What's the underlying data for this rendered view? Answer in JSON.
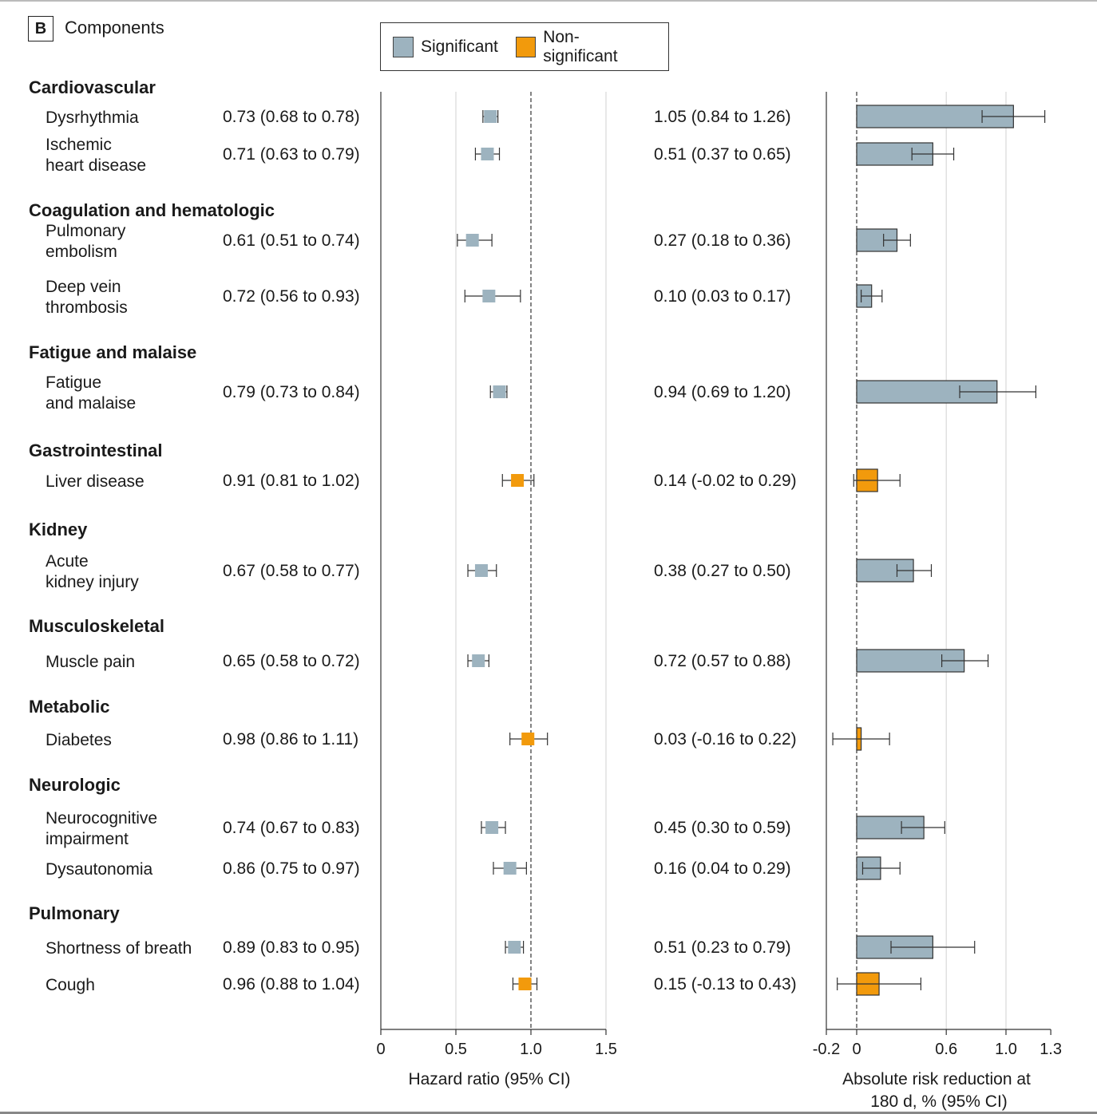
{
  "panel": {
    "label": "B",
    "title": "Components"
  },
  "legend": [
    {
      "label": "Significant",
      "color": "#9db3bf"
    },
    {
      "label": "Non-significant",
      "color": "#f29a0c"
    }
  ],
  "colors": {
    "significant": "#9db3bf",
    "nonsignificant": "#f29a0c",
    "stroke": "#333333",
    "grid": "#d9d9d9"
  },
  "chart_data": [
    {
      "type": "forest",
      "xlabel": "Hazard ratio (95% CI)",
      "xlim": [
        0,
        1.5
      ],
      "xticks": [
        "0",
        "0.5",
        "1.0",
        "1.5"
      ],
      "xtick_values": [
        0,
        0.5,
        1.0,
        1.5
      ],
      "reference_line": 1.0,
      "groups": [
        {
          "name": "Cardiovascular",
          "rows": [
            {
              "label": [
                "Dysrhythmia"
              ],
              "text": "0.73 (0.68 to 0.78)",
              "est": 0.73,
              "lo": 0.68,
              "hi": 0.78,
              "significant": true
            },
            {
              "label": [
                "Ischemic",
                "heart disease"
              ],
              "text": "0.71 (0.63 to 0.79)",
              "est": 0.71,
              "lo": 0.63,
              "hi": 0.79,
              "significant": true
            }
          ]
        },
        {
          "name": "Coagulation and hematologic",
          "rows": [
            {
              "label": [
                "Pulmonary",
                "embolism"
              ],
              "text": "0.61 (0.51 to 0.74)",
              "est": 0.61,
              "lo": 0.51,
              "hi": 0.74,
              "significant": true
            },
            {
              "label": [
                "Deep vein",
                "thrombosis"
              ],
              "text": "0.72 (0.56 to 0.93)",
              "est": 0.72,
              "lo": 0.56,
              "hi": 0.93,
              "significant": true
            }
          ]
        },
        {
          "name": "Fatigue and malaise",
          "rows": [
            {
              "label": [
                "Fatigue",
                "and malaise"
              ],
              "text": "0.79 (0.73 to 0.84)",
              "est": 0.79,
              "lo": 0.73,
              "hi": 0.84,
              "significant": true
            }
          ]
        },
        {
          "name": "Gastrointestinal",
          "rows": [
            {
              "label": [
                "Liver disease"
              ],
              "text": "0.91 (0.81 to 1.02)",
              "est": 0.91,
              "lo": 0.81,
              "hi": 1.02,
              "significant": false
            }
          ]
        },
        {
          "name": "Kidney",
          "rows": [
            {
              "label": [
                "Acute",
                "kidney injury"
              ],
              "text": "0.67 (0.58 to 0.77)",
              "est": 0.67,
              "lo": 0.58,
              "hi": 0.77,
              "significant": true
            }
          ]
        },
        {
          "name": "Musculoskeletal",
          "rows": [
            {
              "label": [
                "Muscle pain"
              ],
              "text": "0.65 (0.58 to 0.72)",
              "est": 0.65,
              "lo": 0.58,
              "hi": 0.72,
              "significant": true
            }
          ]
        },
        {
          "name": "Metabolic",
          "rows": [
            {
              "label": [
                "Diabetes"
              ],
              "text": "0.98 (0.86 to 1.11)",
              "est": 0.98,
              "lo": 0.86,
              "hi": 1.11,
              "significant": false
            }
          ]
        },
        {
          "name": "Neurologic",
          "rows": [
            {
              "label": [
                "Neurocognitive",
                "impairment"
              ],
              "text": "0.74 (0.67 to 0.83)",
              "est": 0.74,
              "lo": 0.67,
              "hi": 0.83,
              "significant": true
            },
            {
              "label": [
                "Dysautonomia"
              ],
              "text": "0.86 (0.75 to 0.97)",
              "est": 0.86,
              "lo": 0.75,
              "hi": 0.97,
              "significant": true
            }
          ]
        },
        {
          "name": "Pulmonary",
          "rows": [
            {
              "label": [
                "Shortness of breath"
              ],
              "text": "0.89 (0.83 to 0.95)",
              "est": 0.89,
              "lo": 0.83,
              "hi": 0.95,
              "significant": true
            },
            {
              "label": [
                "Cough"
              ],
              "text": "0.96 (0.88 to 1.04)",
              "est": 0.96,
              "lo": 0.88,
              "hi": 1.04,
              "significant": false
            }
          ]
        }
      ]
    },
    {
      "type": "bar",
      "orientation": "horizontal",
      "xlabel": [
        "Absolute risk reduction at",
        "180 d, % (95% CI)"
      ],
      "xlim": [
        -0.2,
        1.3
      ],
      "xticks": [
        "-0.2",
        "0",
        "0.6",
        "1.0",
        "1.3"
      ],
      "xtick_values": [
        -0.2,
        0,
        0.6,
        1.0,
        1.3
      ],
      "gridlines": [
        0.6,
        1.0
      ],
      "reference_line": 0,
      "rows": [
        {
          "text": "1.05 (0.84 to 1.26)",
          "value": 1.05,
          "lo": 0.84,
          "hi": 1.26,
          "significant": true
        },
        {
          "text": "0.51 (0.37 to 0.65)",
          "value": 0.51,
          "lo": 0.37,
          "hi": 0.65,
          "significant": true
        },
        {
          "text": "0.27 (0.18 to 0.36)",
          "value": 0.27,
          "lo": 0.18,
          "hi": 0.36,
          "significant": true
        },
        {
          "text": "0.10 (0.03 to 0.17)",
          "value": 0.1,
          "lo": 0.03,
          "hi": 0.17,
          "significant": true
        },
        {
          "text": "0.94 (0.69 to 1.20)",
          "value": 0.94,
          "lo": 0.69,
          "hi": 1.2,
          "significant": true
        },
        {
          "text": "0.14 (-0.02 to 0.29)",
          "value": 0.14,
          "lo": -0.02,
          "hi": 0.29,
          "significant": false
        },
        {
          "text": "0.38 (0.27 to 0.50)",
          "value": 0.38,
          "lo": 0.27,
          "hi": 0.5,
          "significant": true
        },
        {
          "text": "0.72 (0.57 to 0.88)",
          "value": 0.72,
          "lo": 0.57,
          "hi": 0.88,
          "significant": true
        },
        {
          "text": "0.03 (-0.16 to 0.22)",
          "value": 0.03,
          "lo": -0.16,
          "hi": 0.22,
          "significant": false
        },
        {
          "text": "0.45 (0.30 to 0.59)",
          "value": 0.45,
          "lo": 0.3,
          "hi": 0.59,
          "significant": true
        },
        {
          "text": "0.16 (0.04 to 0.29)",
          "value": 0.16,
          "lo": 0.04,
          "hi": 0.29,
          "significant": true
        },
        {
          "text": "0.51 (0.23 to 0.79)",
          "value": 0.51,
          "lo": 0.23,
          "hi": 0.79,
          "significant": true
        },
        {
          "text": "0.15 (-0.13 to 0.43)",
          "value": 0.15,
          "lo": -0.13,
          "hi": 0.43,
          "significant": false
        }
      ]
    }
  ]
}
